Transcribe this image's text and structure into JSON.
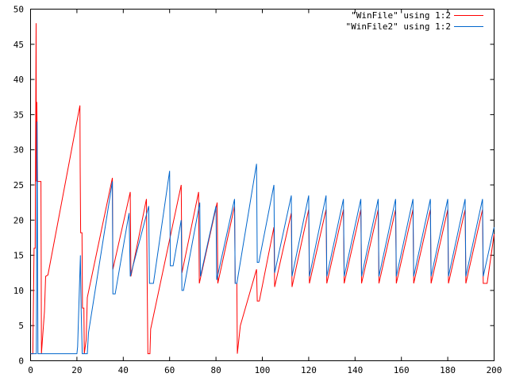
{
  "chart_data": {
    "type": "line",
    "title": "",
    "xlabel": "",
    "ylabel": "",
    "xlim": [
      0,
      200
    ],
    "ylim": [
      0,
      50
    ],
    "xticks": [
      0,
      20,
      40,
      60,
      80,
      100,
      120,
      140,
      160,
      180,
      200
    ],
    "yticks": [
      0,
      5,
      10,
      15,
      20,
      25,
      30,
      35,
      40,
      45,
      50
    ],
    "grid": false,
    "legend_position": "top-right",
    "series": [
      {
        "name": "\"WinFile\" using 1:2",
        "color": "#ff0000",
        "points": [
          [
            0,
            1
          ],
          [
            1,
            1
          ],
          [
            1.5,
            16
          ],
          [
            2,
            16
          ],
          [
            2.4,
            48
          ],
          [
            2.5,
            25.5
          ],
          [
            2.7,
            36.8
          ],
          [
            3,
            25.5
          ],
          [
            4.5,
            25.5
          ],
          [
            4.7,
            1
          ],
          [
            6,
            7
          ],
          [
            6.5,
            12
          ],
          [
            7.5,
            12.2
          ],
          [
            21.3,
            36.3
          ],
          [
            21.4,
            27.5
          ],
          [
            21.6,
            18.2
          ],
          [
            22.2,
            18.2
          ],
          [
            22.4,
            7.5
          ],
          [
            23,
            7.5
          ],
          [
            23.2,
            1
          ],
          [
            24,
            3
          ],
          [
            24.5,
            9
          ],
          [
            35.3,
            26
          ],
          [
            35.5,
            13
          ],
          [
            43,
            24
          ],
          [
            43.3,
            12
          ],
          [
            50,
            23
          ],
          [
            50.3,
            11.5
          ],
          [
            50.6,
            1
          ],
          [
            51.5,
            1
          ],
          [
            51.8,
            4.5
          ],
          [
            65,
            25
          ],
          [
            65.3,
            12.5
          ],
          [
            72.5,
            24
          ],
          [
            72.8,
            11
          ],
          [
            80.5,
            22.5
          ],
          [
            80.8,
            11
          ],
          [
            88,
            22
          ],
          [
            88.3,
            11
          ],
          [
            89,
            11
          ],
          [
            89.2,
            1
          ],
          [
            90.5,
            5
          ],
          [
            97.5,
            13
          ],
          [
            97.8,
            8.5
          ],
          [
            98.7,
            8.5
          ],
          [
            105,
            19
          ],
          [
            105.3,
            10.5
          ],
          [
            112.5,
            21
          ],
          [
            112.8,
            10.5
          ],
          [
            120,
            21.5
          ],
          [
            120.3,
            11
          ],
          [
            127.5,
            21.5
          ],
          [
            127.8,
            11
          ],
          [
            135,
            21.5
          ],
          [
            135.3,
            11
          ],
          [
            142.5,
            21.5
          ],
          [
            142.8,
            11
          ],
          [
            150,
            21.5
          ],
          [
            150.3,
            11
          ],
          [
            157.5,
            21.5
          ],
          [
            157.8,
            11
          ],
          [
            165,
            21.5
          ],
          [
            165.3,
            11
          ],
          [
            172.5,
            21.5
          ],
          [
            172.8,
            11
          ],
          [
            180,
            21.5
          ],
          [
            180.3,
            11
          ],
          [
            187.5,
            21.5
          ],
          [
            187.8,
            11
          ],
          [
            195,
            21.5
          ],
          [
            195.3,
            11
          ],
          [
            197,
            11
          ],
          [
            200,
            18
          ]
        ]
      },
      {
        "name": "\"WinFile2\" using 1:2",
        "color": "#0066cc",
        "points": [
          [
            0,
            1
          ],
          [
            2.5,
            1
          ],
          [
            2.8,
            34
          ],
          [
            3.2,
            1
          ],
          [
            20,
            1
          ],
          [
            20.3,
            2
          ],
          [
            21.5,
            15
          ],
          [
            21.8,
            7.5
          ],
          [
            22.3,
            1
          ],
          [
            24.5,
            1
          ],
          [
            25,
            4
          ],
          [
            35.3,
            25.5
          ],
          [
            35.5,
            9.5
          ],
          [
            36.5,
            9.5
          ],
          [
            42.5,
            21
          ],
          [
            43,
            12
          ],
          [
            51,
            22
          ],
          [
            51.3,
            11
          ],
          [
            53,
            11
          ],
          [
            60,
            27
          ],
          [
            60.3,
            13.5
          ],
          [
            61.5,
            13.5
          ],
          [
            65,
            20
          ],
          [
            65.3,
            10
          ],
          [
            66,
            10
          ],
          [
            73,
            22.5
          ],
          [
            73.3,
            12
          ],
          [
            80,
            22
          ],
          [
            80.3,
            11.5
          ],
          [
            88,
            23
          ],
          [
            88.3,
            11
          ],
          [
            89,
            11
          ],
          [
            97.5,
            28
          ],
          [
            97.8,
            14
          ],
          [
            98.5,
            14
          ],
          [
            105,
            25
          ],
          [
            105.3,
            12.5
          ],
          [
            112.5,
            23.5
          ],
          [
            112.8,
            12
          ],
          [
            120,
            23.5
          ],
          [
            120.3,
            12
          ],
          [
            127.5,
            23.5
          ],
          [
            127.8,
            12
          ],
          [
            135,
            23
          ],
          [
            135.3,
            12
          ],
          [
            142.5,
            23
          ],
          [
            142.8,
            12
          ],
          [
            150,
            23
          ],
          [
            150.3,
            12
          ],
          [
            157.5,
            23
          ],
          [
            157.8,
            12
          ],
          [
            165,
            23
          ],
          [
            165.3,
            12
          ],
          [
            172.5,
            23
          ],
          [
            172.8,
            12
          ],
          [
            180,
            23
          ],
          [
            180.3,
            12
          ],
          [
            187.5,
            23
          ],
          [
            187.8,
            12
          ],
          [
            195,
            23
          ],
          [
            195.3,
            12
          ],
          [
            200,
            19
          ]
        ]
      }
    ]
  }
}
